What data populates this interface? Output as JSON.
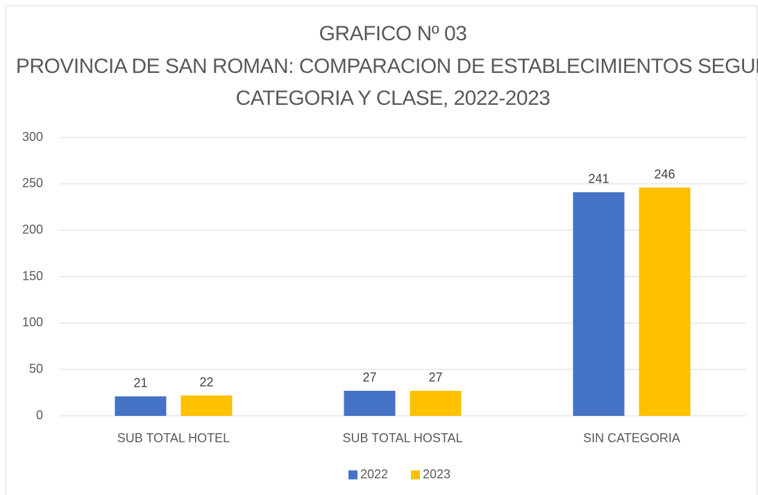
{
  "chart_data": {
    "type": "bar",
    "title": [
      "GRAFICO Nº 03",
      "PROVINCIA DE SAN ROMAN: COMPARACION DE ESTABLECIMIENTOS SEGUN",
      "CATEGORIA Y CLASE, 2022-2023"
    ],
    "categories": [
      "SUB TOTAL HOTEL",
      "SUB TOTAL HOSTAL",
      "SIN CATEGORIA"
    ],
    "series": [
      {
        "name": "2022",
        "color": "#4472c4",
        "values": [
          21,
          27,
          241
        ]
      },
      {
        "name": "2023",
        "color": "#ffc000",
        "values": [
          22,
          27,
          246
        ]
      }
    ],
    "ylim": [
      0,
      300
    ],
    "yticks": [
      0,
      50,
      100,
      150,
      200,
      250,
      300
    ],
    "grid": true,
    "legend": "bottom"
  }
}
